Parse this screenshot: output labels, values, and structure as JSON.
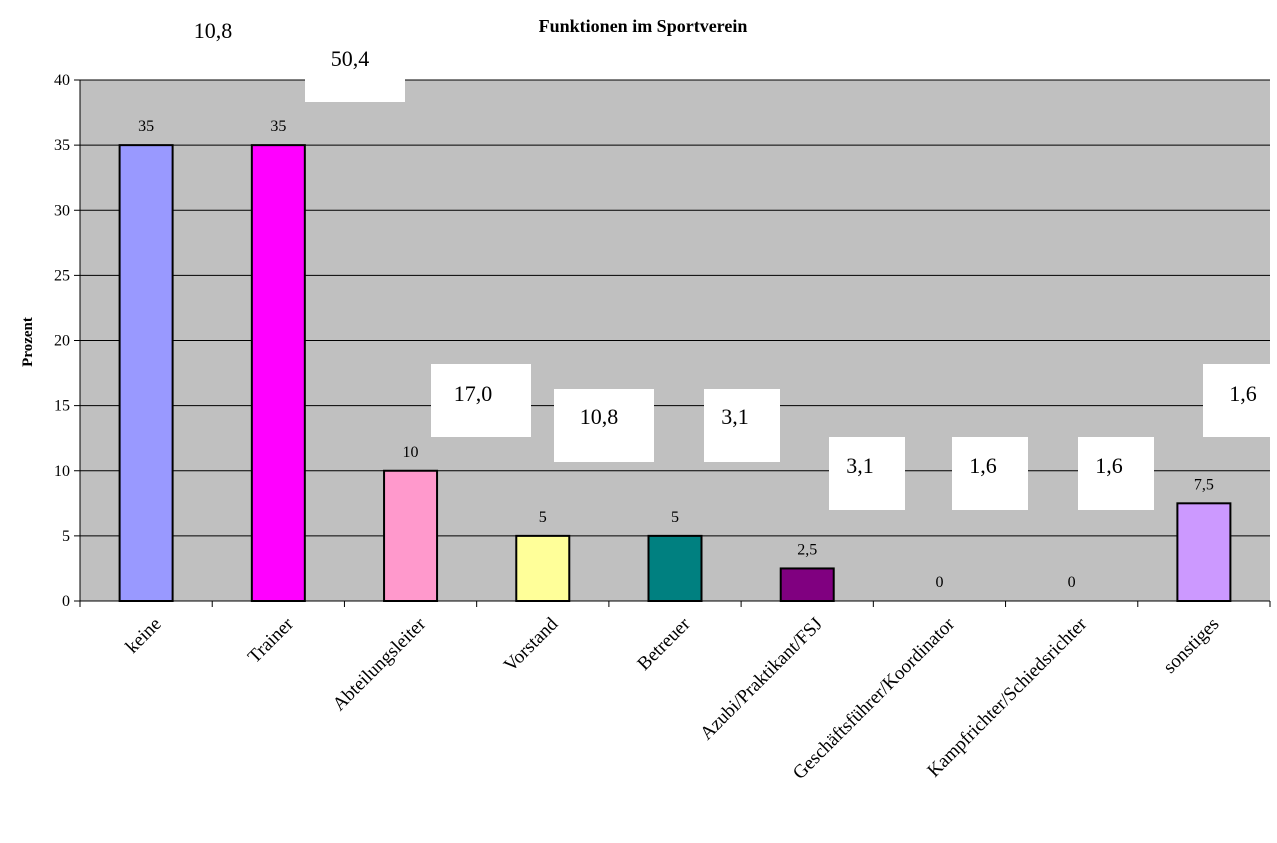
{
  "chart_data": {
    "type": "bar",
    "title": "Funktionen im Sportverein",
    "xlabel": "",
    "ylabel": "Prozent",
    "ylim": [
      0,
      40
    ],
    "yticks": [
      0,
      5,
      10,
      15,
      20,
      25,
      30,
      35,
      40
    ],
    "grid": true,
    "legend": "none",
    "plot_background": "#c0c0c0",
    "categories": [
      "keine",
      "Trainer",
      "Abteilungsleiter",
      "Vorstand",
      "Betreuer",
      "Azubi/Praktikant/FSJ",
      "Geschäftsführer/Koordinator",
      "Kampfrichter/Schiedsrichter",
      "sonstiges"
    ],
    "values": [
      35,
      35,
      10,
      5,
      5,
      2.5,
      0,
      0,
      7.5
    ],
    "value_labels": [
      "35",
      "35",
      "10",
      "5",
      "5",
      "2,5",
      "0",
      "0",
      "7,5"
    ],
    "colors": [
      "#9999ff",
      "#ff00ff",
      "#ff99cc",
      "#ffff99",
      "#008080",
      "#800080",
      "#c0c0c0",
      "#c0c0c0",
      "#cc99ff"
    ],
    "overlay_labels": [
      "10,8",
      "50,4",
      "17,0",
      "10,8",
      "3,1",
      "3,1",
      "1,6",
      "1,6",
      "1,6"
    ]
  }
}
